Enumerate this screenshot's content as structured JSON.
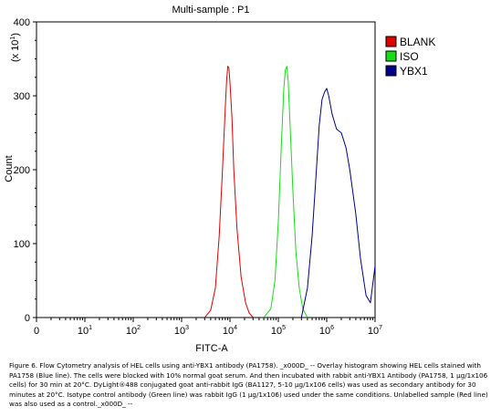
{
  "chart_data": {
    "type": "line",
    "title": "Multi-sample : P1",
    "xlabel": "FITC-A",
    "ylabel": "Count",
    "y_multiplier": "(x 10",
    "y_multiplier_exp": "1",
    "y_multiplier_close": ")",
    "x_scale": "log",
    "xlim": [
      0,
      10000000
    ],
    "ylim": [
      0,
      400
    ],
    "x_tick_labels": [
      {
        "base": "0",
        "exp": ""
      },
      {
        "base": "10",
        "exp": "1"
      },
      {
        "base": "10",
        "exp": "2"
      },
      {
        "base": "10",
        "exp": "3"
      },
      {
        "base": "10",
        "exp": "4"
      },
      {
        "base": "10",
        "exp": "5"
      },
      {
        "base": "10",
        "exp": "6"
      },
      {
        "base": "10",
        "exp": "7"
      }
    ],
    "y_ticks": [
      0,
      100,
      200,
      300,
      400
    ],
    "legend_position": "right",
    "series": [
      {
        "name": "BLANK",
        "color": "#e00000",
        "x": [
          3000,
          4000,
          5000,
          6000,
          7000,
          8000,
          8500,
          9000,
          9500,
          10000,
          11000,
          12000,
          14000,
          17000,
          21000,
          25000,
          30000
        ],
        "values": [
          0,
          10,
          40,
          110,
          200,
          285,
          320,
          340,
          338,
          318,
          270,
          200,
          120,
          55,
          20,
          6,
          0
        ]
      },
      {
        "name": "ISO",
        "color": "#18dd18",
        "x": [
          50000,
          70000,
          85000,
          100000,
          115000,
          130000,
          140000,
          150000,
          160000,
          175000,
          200000,
          230000,
          270000,
          320000,
          400000
        ],
        "values": [
          0,
          12,
          50,
          130,
          230,
          310,
          335,
          340,
          320,
          260,
          170,
          90,
          40,
          12,
          0
        ]
      },
      {
        "name": "YBX1",
        "color": "#00008b",
        "x": [
          300000,
          400000,
          500000,
          600000,
          700000,
          800000,
          900000,
          1000000,
          1100000,
          1300000,
          1600000,
          2000000,
          2500000,
          3000000,
          4000000,
          5000000,
          6500000,
          8000000,
          10000000
        ],
        "values": [
          0,
          40,
          110,
          190,
          260,
          295,
          305,
          310,
          300,
          275,
          255,
          250,
          230,
          200,
          140,
          80,
          30,
          20,
          70
        ]
      }
    ]
  },
  "caption": "Figure 6. Flow Cytometry analysis of HEL cells using anti-YBX1 antibody (PA1758). _x000D_ -- Overlay histogram showing HEL cells stained with PA1758 (Blue line). The cells were blocked with 10% normal goat serum. And then incubated with rabbit anti-YBX1 Antibody (PA1758, 1 µg/1x106 cells) for 30 min at 20°C. DyLight®488 conjugated goat anti-rabbit IgG (BA1127, 5-10 µg/1x106 cells) was used as secondary antibody for 30 minutes at 20°C. Isotype control antibody (Green line) was rabbit IgG (1 µg/1x106) used under the same conditions. Unlabelled sample (Red line) was also used as a control._x000D_ --"
}
